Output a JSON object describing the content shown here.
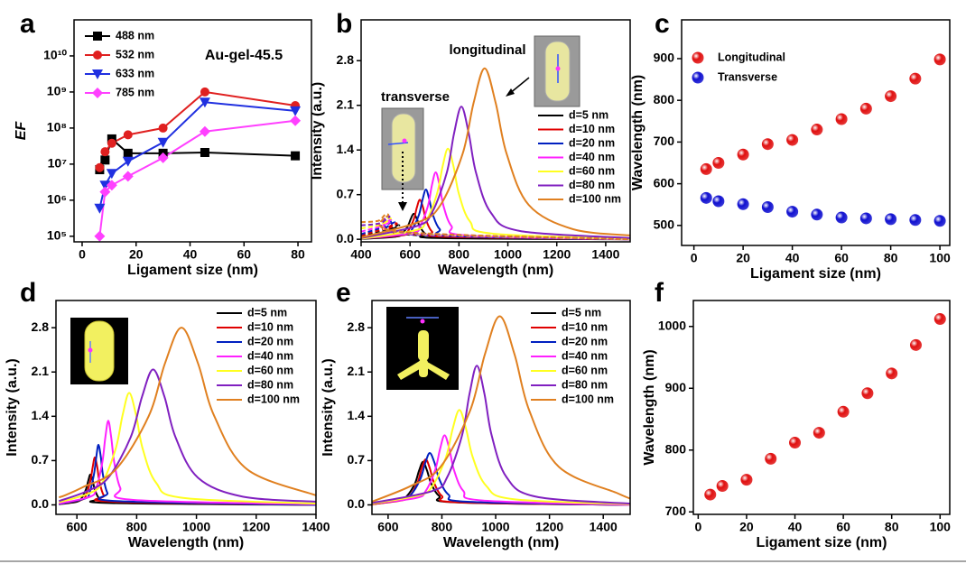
{
  "chart_data": [
    {
      "type": "line",
      "label": "a",
      "annotation": "Au-gel-45.5",
      "xlabel": "Ligament size (nm)",
      "ylabel": "EF",
      "log_y": true,
      "xlim": [
        -3,
        85
      ],
      "xticks": [
        0,
        20,
        40,
        60,
        80
      ],
      "ylim": [
        70000,
        100000000000
      ],
      "yticks": [
        {
          "value": 100000,
          "label": "10⁵"
        },
        {
          "value": 1000000,
          "label": "10⁶"
        },
        {
          "value": 10000000,
          "label": "10⁷"
        },
        {
          "value": 100000000,
          "label": "10⁸"
        },
        {
          "value": 1000000000,
          "label": "10⁹"
        },
        {
          "value": 10000000000,
          "label": "10¹⁰"
        }
      ],
      "legend": "upper left",
      "x": [
        6.5,
        8.5,
        11,
        17,
        30,
        45.5,
        79
      ],
      "series": [
        {
          "name": "488 nm",
          "color": "#000000",
          "marker": "square",
          "values": [
            7000000.0,
            13000000.0,
            50000000.0,
            20000000.0,
            20000000.0,
            21000000.0,
            17000000.0
          ]
        },
        {
          "name": "532 nm",
          "color": "#e02020",
          "marker": "circle",
          "values": [
            8000000.0,
            22000000.0,
            38000000.0,
            65000000.0,
            100000000.0,
            1000000000.0,
            420000000.0
          ]
        },
        {
          "name": "633 nm",
          "color": "#2030e0",
          "marker": "triangle-down",
          "values": [
            600000.0,
            2600000.0,
            5500000.0,
            12000000.0,
            40000000.0,
            520000000.0,
            300000000.0
          ]
        },
        {
          "name": "785 nm",
          "color": "#ff40ff",
          "marker": "diamond",
          "values": [
            100000.0,
            1700000.0,
            2600000.0,
            4600000.0,
            15000000.0,
            80000000.0,
            160000000.0
          ]
        }
      ]
    },
    {
      "type": "line",
      "label": "b",
      "annotations": [
        "longitudinal",
        "transverse"
      ],
      "xlabel": "Wavelength (nm)",
      "ylabel": "Intensity (a.u.)",
      "xlim": [
        400,
        1500
      ],
      "xticks": [
        400,
        600,
        800,
        1000,
        1200,
        1400
      ],
      "ylim": [
        -0.04,
        3.44
      ],
      "yticks": [
        {
          "value": 0,
          "label": "0.0"
        },
        0.7,
        1.4,
        2.1,
        2.8
      ],
      "legend": "center right",
      "series": [
        {
          "name": "d=5 nm",
          "color": "#000000",
          "x": [
            400,
            540,
            565,
            590,
            603,
            615,
            628,
            640,
            665,
            715,
            1500
          ],
          "values": [
            0.005,
            0.04,
            0.08,
            0.2,
            0.32,
            0.4,
            0.32,
            0.2,
            0.08,
            0.02,
            0
          ],
          "dashed_x": [
            400,
            515,
            555,
            605,
            1500
          ],
          "dashed_values": [
            0.05,
            0.15,
            0.22,
            0.07,
            0
          ]
        },
        {
          "name": "d=10 nm",
          "color": "#e00000",
          "x": [
            400,
            565,
            590,
            615,
            628,
            640,
            653,
            665,
            690,
            740,
            1500
          ],
          "values": [
            0.01,
            0.06,
            0.12,
            0.31,
            0.5,
            0.62,
            0.5,
            0.31,
            0.12,
            0.04,
            0
          ],
          "dashed_x": [
            400,
            505,
            545,
            595,
            1500
          ],
          "dashed_values": [
            0.06,
            0.18,
            0.25,
            0.08,
            0
          ]
        },
        {
          "name": "d=20 nm",
          "color": "#0020c0",
          "x": [
            400,
            581,
            609,
            637,
            651,
            665,
            679,
            693,
            721,
            777,
            1500
          ],
          "values": [
            0.01,
            0.08,
            0.16,
            0.39,
            0.62,
            0.78,
            0.62,
            0.39,
            0.16,
            0.05,
            0
          ],
          "dashed_x": [
            400,
            495,
            535,
            585,
            1500
          ],
          "dashed_values": [
            0.08,
            0.2,
            0.28,
            0.08,
            0
          ]
        },
        {
          "name": "d=40 nm",
          "color": "#ff20ff",
          "x": [
            400,
            609,
            641,
            673,
            689,
            705,
            721,
            737,
            769,
            833,
            1500
          ],
          "values": [
            0.01,
            0.1,
            0.21,
            0.52,
            0.84,
            1.05,
            0.84,
            0.52,
            0.21,
            0.06,
            0
          ],
          "dashed_x": [
            400,
            485,
            525,
            575,
            1500
          ],
          "dashed_values": [
            0.12,
            0.21,
            0.3,
            0.09,
            0
          ]
        },
        {
          "name": "d=60 nm",
          "color": "#ffff20",
          "x": [
            400,
            620,
            665,
            710,
            733,
            755,
            778,
            800,
            845,
            935,
            1500
          ],
          "values": [
            0.01,
            0.14,
            0.28,
            0.71,
            1.14,
            1.42,
            1.14,
            0.71,
            0.28,
            0.09,
            0.01
          ],
          "dashed_x": [
            400,
            480,
            520,
            570,
            1500
          ],
          "dashed_values": [
            0.17,
            0.23,
            0.33,
            0.1,
            0
          ]
        },
        {
          "name": "d=80 nm",
          "color": "#8020c0",
          "x": [
            400,
            630,
            690,
            750,
            780,
            810,
            840,
            870,
            930,
            1050,
            1500
          ],
          "values": [
            0.02,
            0.21,
            0.42,
            1.04,
            1.66,
            2.08,
            1.66,
            1.04,
            0.42,
            0.13,
            0.02
          ],
          "dashed_x": [
            400,
            475,
            515,
            565,
            1500
          ],
          "dashed_values": [
            0.22,
            0.25,
            0.36,
            0.11,
            0
          ]
        },
        {
          "name": "d=100 nm",
          "color": "#e08020",
          "x": [
            400,
            635,
            725,
            815,
            860,
            905,
            950,
            995,
            1085,
            1265,
            1500
          ],
          "values": [
            0.03,
            0.27,
            0.54,
            1.34,
            2.14,
            2.68,
            2.14,
            1.34,
            0.54,
            0.16,
            0.06
          ],
          "dashed_x": [
            400,
            470,
            510,
            560,
            1500
          ],
          "dashed_values": [
            0.27,
            0.29,
            0.39,
            0.12,
            0
          ]
        }
      ]
    },
    {
      "type": "scatter",
      "label": "c",
      "xlabel": "Ligament size (nm)",
      "ylabel": "Wavelength (nm)",
      "xlim": [
        -5,
        104
      ],
      "xticks": [
        0,
        20,
        40,
        60,
        80,
        100
      ],
      "ylim": [
        452,
        993
      ],
      "yticks": [
        500,
        600,
        700,
        800,
        900
      ],
      "legend": "upper left",
      "x": [
        5,
        10,
        20,
        30,
        40,
        50,
        60,
        70,
        80,
        90,
        100
      ],
      "series": [
        {
          "name": "Longitudinal",
          "color": "#e01010",
          "values": [
            635,
            650,
            670,
            695,
            705,
            730,
            755,
            780,
            810,
            852,
            898
          ]
        },
        {
          "name": "Transverse",
          "color": "#1010d0",
          "values": [
            566,
            558,
            551,
            544,
            533,
            526,
            519,
            517,
            515,
            513,
            511
          ]
        }
      ]
    },
    {
      "type": "line",
      "label": "d",
      "xlabel": "Wavelength (nm)",
      "ylabel": "Intensity (a.u.)",
      "xlim": [
        530,
        1400
      ],
      "xticks": [
        600,
        800,
        1000,
        1200,
        1400
      ],
      "ylim": [
        -0.15,
        3.23
      ],
      "yticks": [
        {
          "value": 0,
          "label": "0.0"
        },
        0.7,
        1.4,
        2.1,
        2.8
      ],
      "legend": "upper right",
      "series": [
        {
          "name": "d=5 nm",
          "color": "#000000",
          "x": [
            540,
            600,
            615,
            630,
            638,
            645,
            653,
            660,
            675,
            705,
            1400
          ],
          "values": [
            0.01,
            0.05,
            0.1,
            0.24,
            0.38,
            0.48,
            0.38,
            0.24,
            0.1,
            0.03,
            0
          ]
        },
        {
          "name": "d=10 nm",
          "color": "#e00000",
          "x": [
            540,
            615,
            630,
            645,
            653,
            660,
            668,
            675,
            690,
            720,
            1400
          ],
          "values": [
            0.01,
            0.08,
            0.15,
            0.38,
            0.6,
            0.75,
            0.6,
            0.38,
            0.15,
            0.05,
            0
          ]
        },
        {
          "name": "d=20 nm",
          "color": "#0020c0",
          "x": [
            540,
            627,
            642,
            657,
            665,
            672,
            680,
            687,
            702,
            732,
            1400
          ],
          "values": [
            0.01,
            0.1,
            0.19,
            0.48,
            0.76,
            0.95,
            0.76,
            0.48,
            0.19,
            0.06,
            0
          ]
        },
        {
          "name": "d=40 nm",
          "color": "#ff20ff",
          "x": [
            540,
            645,
            665,
            685,
            695,
            705,
            715,
            725,
            745,
            785,
            1400
          ],
          "values": [
            0.02,
            0.13,
            0.27,
            0.67,
            1.06,
            1.33,
            1.06,
            0.67,
            0.27,
            0.08,
            0.01
          ]
        },
        {
          "name": "d=60 nm",
          "color": "#ffff20",
          "x": [
            540,
            640,
            685,
            730,
            753,
            775,
            798,
            820,
            865,
            955,
            1400
          ],
          "values": [
            0.04,
            0.18,
            0.35,
            0.89,
            1.42,
            1.77,
            1.42,
            0.89,
            0.35,
            0.11,
            0.02
          ]
        },
        {
          "name": "d=80 nm",
          "color": "#8020c0",
          "x": [
            540,
            630,
            705,
            780,
            818,
            855,
            893,
            930,
            1005,
            1155,
            1400
          ],
          "values": [
            0.06,
            0.21,
            0.43,
            1.07,
            1.71,
            2.14,
            1.71,
            1.07,
            0.43,
            0.13,
            0.05
          ]
        },
        {
          "name": "d=100 nm",
          "color": "#e08020",
          "x": [
            540,
            560,
            620,
            730,
            840,
            895,
            950,
            1005,
            1060,
            1170,
            1400
          ],
          "values": [
            0.12,
            0.15,
            0.28,
            0.56,
            1.4,
            2.24,
            2.8,
            2.24,
            1.4,
            0.56,
            0.15
          ]
        }
      ]
    },
    {
      "type": "line",
      "label": "e",
      "xlabel": "Wavelength (nm)",
      "ylabel": "Intensity (a.u.)",
      "xlim": [
        540,
        1500
      ],
      "xticks": [
        600,
        800,
        1000,
        1200,
        1400
      ],
      "ylim": [
        -0.15,
        3.23
      ],
      "yticks": [
        {
          "value": 0,
          "label": "0.0"
        },
        0.7,
        1.4,
        2.1,
        2.8
      ],
      "legend": "upper right",
      "series": [
        {
          "name": "d=5 nm",
          "color": "#000000",
          "x": [
            540,
            640,
            670,
            700,
            715,
            730,
            745,
            760,
            790,
            850,
            1500
          ],
          "values": [
            0.01,
            0.07,
            0.14,
            0.34,
            0.54,
            0.68,
            0.54,
            0.34,
            0.14,
            0.04,
            0
          ]
        },
        {
          "name": "d=10 nm",
          "color": "#e00000",
          "x": [
            540,
            650,
            680,
            710,
            725,
            740,
            755,
            770,
            800,
            860,
            1500
          ],
          "values": [
            0.01,
            0.07,
            0.14,
            0.36,
            0.58,
            0.72,
            0.58,
            0.36,
            0.14,
            0.04,
            0
          ]
        },
        {
          "name": "d=20 nm",
          "color": "#0020c0",
          "x": [
            540,
            650,
            685,
            720,
            738,
            755,
            773,
            790,
            825,
            895,
            1500
          ],
          "values": [
            0.02,
            0.08,
            0.16,
            0.41,
            0.66,
            0.82,
            0.66,
            0.41,
            0.16,
            0.05,
            0
          ]
        },
        {
          "name": "d=40 nm",
          "color": "#ff20ff",
          "x": [
            540,
            705,
            740,
            775,
            793,
            810,
            828,
            845,
            880,
            950,
            1500
          ],
          "values": [
            0.02,
            0.11,
            0.22,
            0.55,
            0.88,
            1.1,
            0.88,
            0.55,
            0.22,
            0.07,
            0
          ]
        },
        {
          "name": "d=60 nm",
          "color": "#ffff20",
          "x": [
            540,
            715,
            765,
            815,
            840,
            865,
            890,
            915,
            965,
            1065,
            1500
          ],
          "values": [
            0.02,
            0.15,
            0.3,
            0.75,
            1.2,
            1.5,
            1.2,
            0.75,
            0.3,
            0.09,
            0.01
          ]
        },
        {
          "name": "d=80 nm",
          "color": "#8020c0",
          "x": [
            540,
            765,
            820,
            875,
            903,
            930,
            958,
            985,
            1040,
            1150,
            1500
          ],
          "values": [
            0.03,
            0.22,
            0.44,
            1.1,
            1.76,
            2.2,
            1.76,
            1.1,
            0.44,
            0.13,
            0.02
          ]
        },
        {
          "name": "d=100 nm",
          "color": "#e08020",
          "x": [
            540,
            685,
            795,
            905,
            960,
            1015,
            1070,
            1125,
            1235,
            1455,
            1500
          ],
          "values": [
            0.05,
            0.3,
            0.6,
            1.49,
            2.38,
            2.98,
            2.38,
            1.49,
            0.6,
            0.18,
            0.1
          ]
        }
      ]
    },
    {
      "type": "scatter",
      "label": "f",
      "xlabel": "Ligament size (nm)",
      "ylabel": "Wavelength (nm)",
      "xlim": [
        -2,
        104
      ],
      "xticks": [
        0,
        20,
        40,
        60,
        80,
        100
      ],
      "ylim": [
        696,
        1042
      ],
      "yticks": [
        700,
        800,
        900,
        1000
      ],
      "x": [
        5,
        10,
        20,
        30,
        40,
        50,
        60,
        70,
        80,
        90,
        100
      ],
      "series": [
        {
          "color": "#e01010",
          "values": [
            728,
            742,
            752,
            786,
            812,
            828,
            862,
            892,
            924,
            970,
            1012
          ]
        }
      ]
    }
  ]
}
